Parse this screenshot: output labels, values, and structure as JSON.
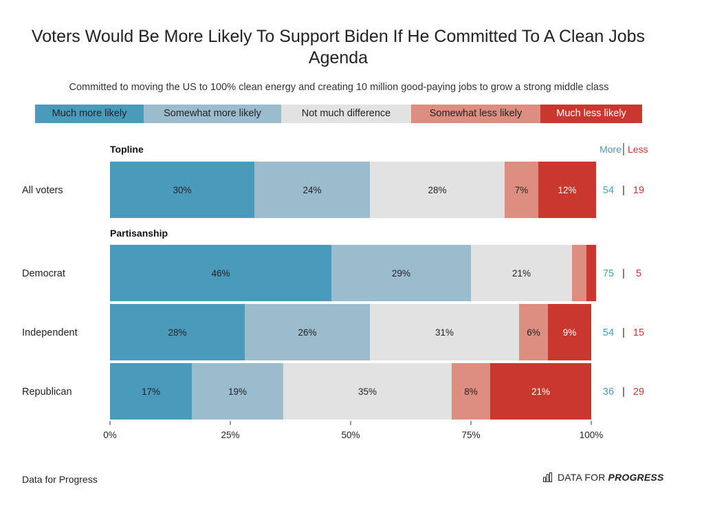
{
  "title": "Voters Would Be More Likely To Support Biden If He Committed To A Clean Jobs Agenda",
  "subtitle": "Committed to moving the US to 100% clean energy and creating 10 million good-paying jobs to grow a strong middle class",
  "legend": [
    {
      "label": "Much more likely",
      "color": "#4a9abb"
    },
    {
      "label": "Somewhat more likely",
      "color": "#9bbccd"
    },
    {
      "label": "Not much difference",
      "color": "#e2e2e2"
    },
    {
      "label": "Somewhat less likely",
      "color": "#de8e80"
    },
    {
      "label": "Much less likely",
      "color": "#c9372f"
    }
  ],
  "colors": {
    "more_text": "#4a9abb",
    "less_text": "#c9372f",
    "separator": "#222222"
  },
  "header_more": "More",
  "header_less": "Less",
  "footer": {
    "source": "Data for Progress",
    "brand_light": "DATA FOR",
    "brand_strong": "PROGRESS",
    "brand_icon": "bar-chart-icon"
  },
  "chart_data": {
    "type": "bar",
    "orientation": "horizontal",
    "stacked": true,
    "xlim": [
      0,
      100
    ],
    "x_ticks": [
      "0%",
      "25%",
      "50%",
      "75%",
      "100%"
    ],
    "series_names": [
      "Much more likely",
      "Somewhat more likely",
      "Not much difference",
      "Somewhat less likely",
      "Much less likely"
    ],
    "groups": [
      {
        "name": "Topline",
        "rows": [
          {
            "label": "All voters",
            "values": [
              30,
              24,
              28,
              7,
              12
            ],
            "labels": [
              "30%",
              "24%",
              "28%",
              "7%",
              "12%"
            ],
            "more": "54",
            "less": "19"
          }
        ]
      },
      {
        "name": "Partisanship",
        "rows": [
          {
            "label": "Democrat",
            "values": [
              46,
              29,
              21,
              3,
              2
            ],
            "labels": [
              "46%",
              "29%",
              "21%",
              "",
              ""
            ],
            "more": "75",
            "less": "5"
          },
          {
            "label": "Independent",
            "values": [
              28,
              26,
              31,
              6,
              9
            ],
            "labels": [
              "28%",
              "26%",
              "31%",
              "6%",
              "9%"
            ],
            "more": "54",
            "less": "15"
          },
          {
            "label": "Republican",
            "values": [
              17,
              19,
              35,
              8,
              21
            ],
            "labels": [
              "17%",
              "19%",
              "35%",
              "8%",
              "21%"
            ],
            "more": "36",
            "less": "29"
          }
        ]
      }
    ]
  }
}
